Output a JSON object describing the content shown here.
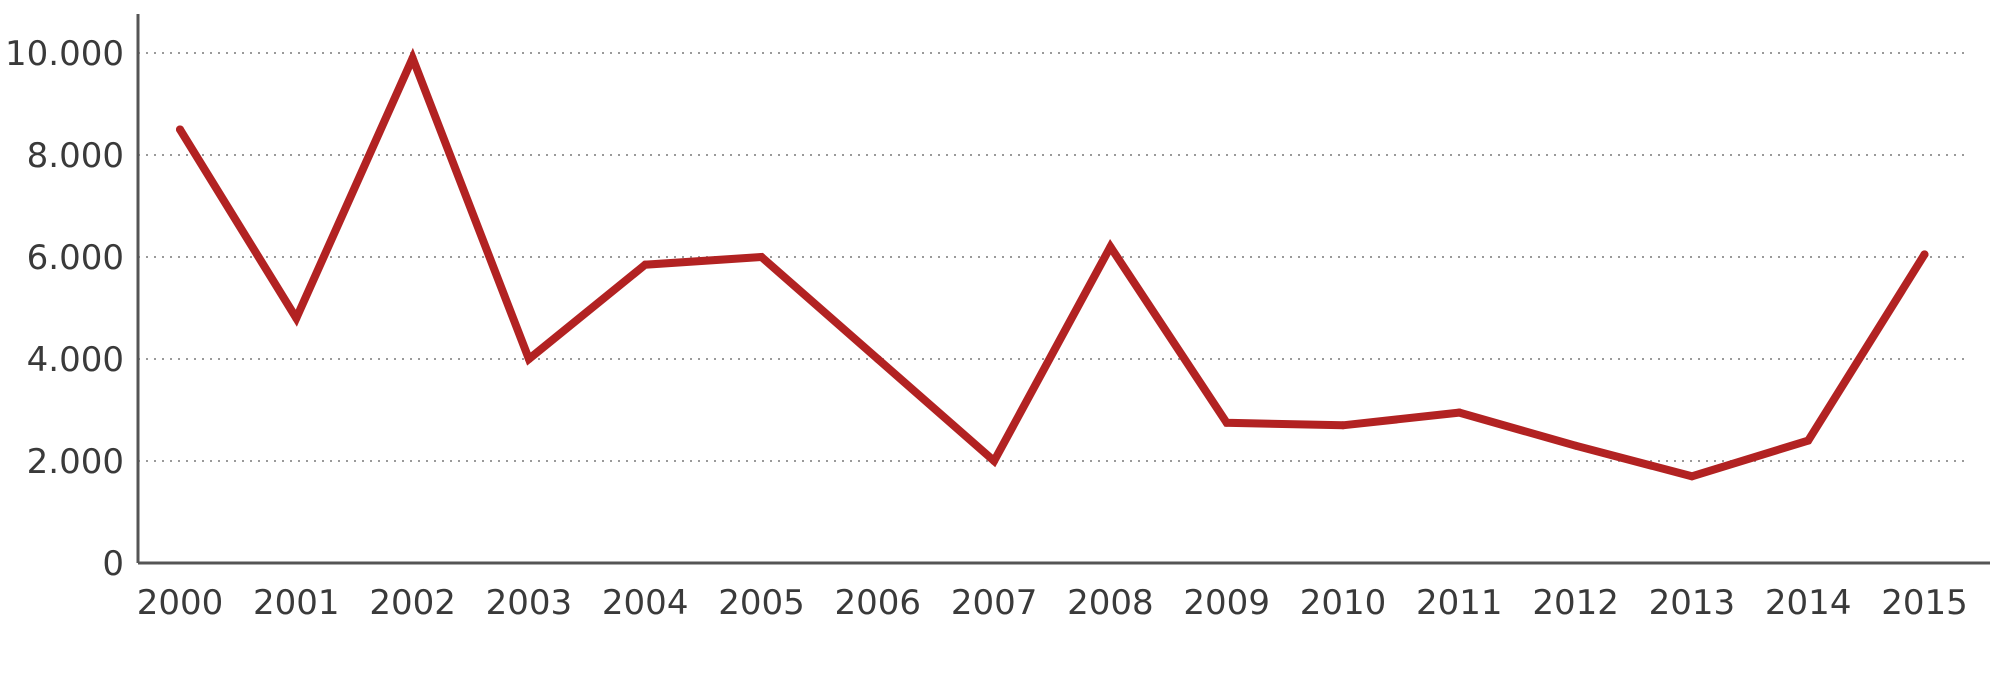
{
  "chart_data": {
    "type": "line",
    "title": "",
    "xlabel": "",
    "ylabel": "",
    "x": [
      "2000",
      "2001",
      "2002",
      "2003",
      "2004",
      "2005",
      "2006",
      "2007",
      "2008",
      "2009",
      "2010",
      "2011",
      "2012",
      "2013",
      "2014",
      "2015"
    ],
    "y_ticks": [
      0,
      2000,
      4000,
      6000,
      8000,
      10000
    ],
    "y_tick_labels": [
      "0",
      "2.000",
      "4.000",
      "6.000",
      "8.000",
      "10.000"
    ],
    "ylim": [
      0,
      10000
    ],
    "grid": "horizontal dotted",
    "legend": "none",
    "series": [
      {
        "values": [
          8500,
          4800,
          9900,
          4000,
          5850,
          6000,
          4000,
          2000,
          6200,
          2750,
          2700,
          2950,
          2300,
          1700,
          2400,
          6050
        ],
        "color": "#b22222"
      }
    ]
  }
}
